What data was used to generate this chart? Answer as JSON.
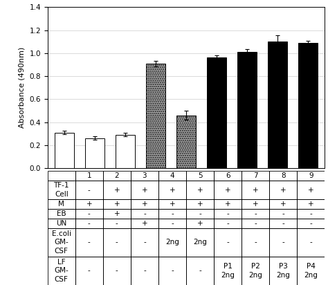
{
  "categories": [
    "1",
    "2",
    "3",
    "4",
    "5",
    "6",
    "7",
    "8",
    "9"
  ],
  "values": [
    0.31,
    0.26,
    0.29,
    0.91,
    0.46,
    0.96,
    1.01,
    1.1,
    1.09
  ],
  "errors": [
    0.015,
    0.015,
    0.015,
    0.025,
    0.04,
    0.02,
    0.025,
    0.055,
    0.02
  ],
  "bar_styles": [
    "white",
    "white",
    "white",
    "gray",
    "gray",
    "black",
    "black",
    "black",
    "black"
  ],
  "ylabel": "Absorbance (490nm)",
  "ylim": [
    0.0,
    1.4
  ],
  "yticks": [
    0.0,
    0.2,
    0.4,
    0.6,
    0.8,
    1.0,
    1.2,
    1.4
  ],
  "table_header": [
    "",
    "1",
    "2",
    "3",
    "4",
    "5",
    "6",
    "7",
    "8",
    "9"
  ],
  "table_rows": [
    [
      "TF-1\nCell",
      "-",
      "+",
      "+",
      "+",
      "+",
      "+",
      "+",
      "+",
      "+"
    ],
    [
      "M",
      "+",
      "+",
      "+",
      "+",
      "+",
      "+",
      "+",
      "+",
      "+"
    ],
    [
      "EB",
      "-",
      "+",
      "-",
      "-",
      "-",
      "-",
      "-",
      "-",
      "-"
    ],
    [
      "UN",
      "-",
      "-",
      "+",
      "-",
      "+",
      "-",
      "-",
      "-",
      "-"
    ],
    [
      "E.coli\nGM-\nCSF",
      "-",
      "-",
      "-",
      "2ng",
      "2ng",
      "-",
      "-",
      "-",
      "-"
    ],
    [
      "LF\nGM-\nCSF",
      "-",
      "-",
      "-",
      "-",
      "-",
      "P1\n2ng",
      "P2\n2ng",
      "P3\n2ng",
      "P4\n2ng"
    ]
  ],
  "row_line_counts": [
    2,
    1,
    1,
    1,
    3,
    3
  ],
  "background_color": "#ffffff"
}
